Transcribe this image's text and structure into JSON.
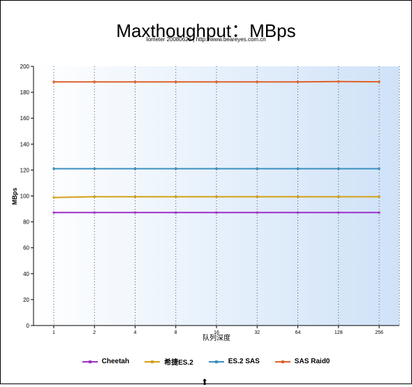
{
  "chart_data": {
    "type": "line",
    "title": "Maxthoughput：MBps",
    "subtitle": "Iometer 20080626 | http://www.beareyes.com.cn",
    "xlabel": "队列深度",
    "ylabel": "MBps",
    "categories": [
      "1",
      "2",
      "4",
      "8",
      "16",
      "32",
      "64",
      "128",
      "256"
    ],
    "ylim": [
      0,
      200
    ],
    "yticks": [
      0,
      20,
      40,
      60,
      80,
      100,
      120,
      140,
      160,
      180,
      200
    ],
    "grid": "vertical-dotted",
    "legend_position": "bottom",
    "series": [
      {
        "name": "Cheetah",
        "color": "#9b30c8",
        "values": [
          87.2,
          87.2,
          87.2,
          87.2,
          87.2,
          87.2,
          87.2,
          87.2,
          87.2
        ]
      },
      {
        "name": "希捷ES.2",
        "color": "#d4a017",
        "values": [
          98.8,
          99.4,
          99.4,
          99.4,
          99.4,
          99.4,
          99.4,
          99.4,
          99.4
        ]
      },
      {
        "name": "ES.2 SAS",
        "color": "#3a8fc0",
        "values": [
          121.0,
          121.0,
          121.0,
          121.0,
          121.0,
          121.0,
          121.0,
          121.0,
          121.0
        ]
      },
      {
        "name": "SAS Raid0",
        "color": "#e0602a",
        "values": [
          188.0,
          188.0,
          188.0,
          188.0,
          188.0,
          188.0,
          188.0,
          188.3,
          188.1
        ]
      }
    ]
  }
}
